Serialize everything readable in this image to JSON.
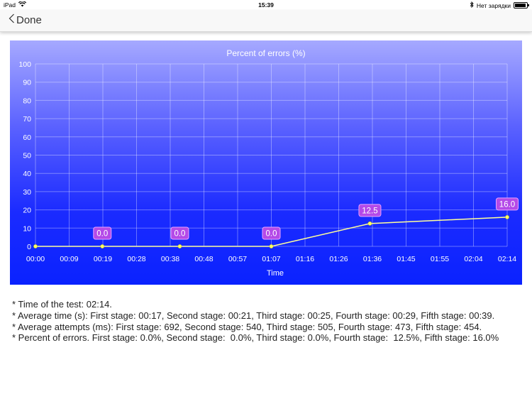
{
  "status": {
    "device": "iPad",
    "time": "15:39",
    "charging_text": "Нет зарядки"
  },
  "nav": {
    "back_label": "Done"
  },
  "chart_data": {
    "type": "line",
    "title": "Percent of errors (%)",
    "xlabel": "Time",
    "ylabel": "",
    "ylim": [
      0,
      100
    ],
    "yticks": [
      "100",
      "90",
      "80",
      "70",
      "60",
      "50",
      "40",
      "30",
      "20",
      "10",
      "0"
    ],
    "xticks": [
      "00:00",
      "00:09",
      "00:19",
      "00:28",
      "00:38",
      "00:48",
      "00:57",
      "01:07",
      "01:16",
      "01:26",
      "01:36",
      "01:45",
      "01:55",
      "02:04",
      "02:14"
    ],
    "grid": true,
    "points": [
      {
        "x": "00:00",
        "y": 0,
        "label": ""
      },
      {
        "x": "00:19",
        "y": 0.0,
        "label": "0.0"
      },
      {
        "x": "00:41",
        "y": 0.0,
        "label": "0.0"
      },
      {
        "x": "01:07",
        "y": 0.0,
        "label": "0.0"
      },
      {
        "x": "01:35",
        "y": 12.5,
        "label": "12.5"
      },
      {
        "x": "02:14",
        "y": 16.0,
        "label": "16.0"
      }
    ],
    "colors": {
      "line": "#ffff9a",
      "point": "#ffff66",
      "label_bg": "#b44ae8",
      "grid": "rgba(255,255,255,0.35)",
      "text": "#ffffff"
    }
  },
  "notes": [
    "* Time of the test: 02:14.",
    "* Average time (s): First stage: 00:17, Second stage: 00:21, Third stage: 00:25, Fourth stage: 00:29, Fifth stage: 00:39.",
    "* Average attempts (ms): First stage: 692, Second stage: 540, Third stage: 505, Fourth stage: 473, Fifth stage: 454.",
    "* Percent of errors. First stage: 0.0%, Second stage:  0.0%, Third stage: 0.0%, Fourth stage:  12.5%, Fifth stage: 16.0%"
  ]
}
